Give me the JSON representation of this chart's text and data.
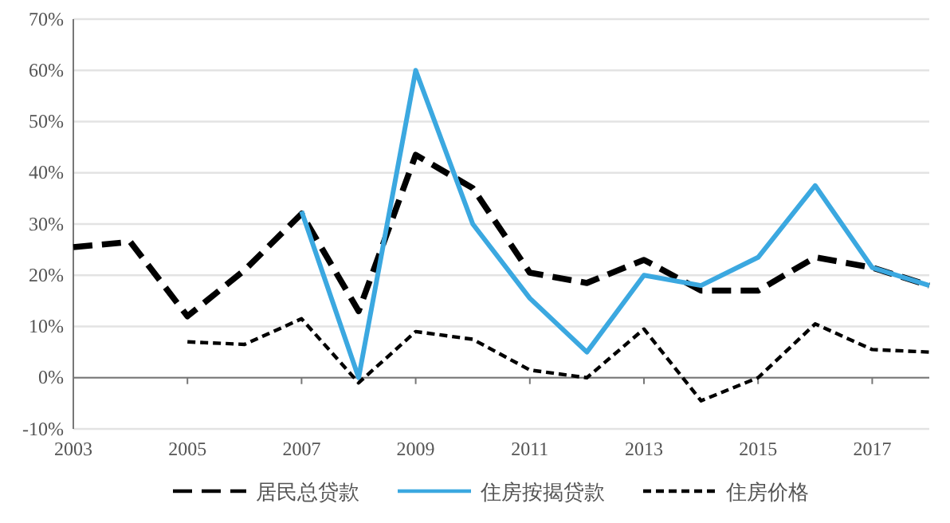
{
  "chart_data": {
    "type": "line",
    "x": [
      2003,
      2004,
      2005,
      2006,
      2007,
      2008,
      2009,
      2010,
      2011,
      2012,
      2013,
      2014,
      2015,
      2016,
      2017,
      2018
    ],
    "xlim": [
      2003,
      2018
    ],
    "xticks": [
      2003,
      2005,
      2007,
      2009,
      2011,
      2013,
      2015,
      2017
    ],
    "ylim": [
      -10,
      70
    ],
    "yticks": [
      {
        "value": -10,
        "label": "-10%"
      },
      {
        "value": 0,
        "label": "0%"
      },
      {
        "value": 10,
        "label": "10%"
      },
      {
        "value": 20,
        "label": "20%"
      },
      {
        "value": 30,
        "label": "30%"
      },
      {
        "value": 40,
        "label": "40%"
      },
      {
        "value": 50,
        "label": "50%"
      },
      {
        "value": 60,
        "label": "60%"
      },
      {
        "value": 70,
        "label": "70%"
      }
    ],
    "grid": "y",
    "legend": "bottom",
    "series": [
      {
        "name": "居民总贷款",
        "color": "#000000",
        "line_style": "dashed",
        "values": [
          25.5,
          26.5,
          12,
          21,
          32,
          13,
          43.5,
          37,
          20.5,
          18.5,
          23,
          17,
          17,
          23.5,
          21.5,
          18
        ]
      },
      {
        "name": "住房按揭贷款",
        "color": "#3ba8e0",
        "line_style": "solid",
        "values": [
          null,
          null,
          null,
          null,
          32.5,
          0,
          60,
          30,
          15.5,
          5,
          20,
          18,
          23.5,
          37.5,
          21.5,
          18
        ]
      },
      {
        "name": "住房价格",
        "color": "#000000",
        "line_style": "dotted",
        "values": [
          null,
          null,
          7,
          6.5,
          11.5,
          -1,
          9,
          7.5,
          1.5,
          0,
          9.5,
          -4.5,
          0,
          10.5,
          5.5,
          5
        ]
      }
    ]
  }
}
